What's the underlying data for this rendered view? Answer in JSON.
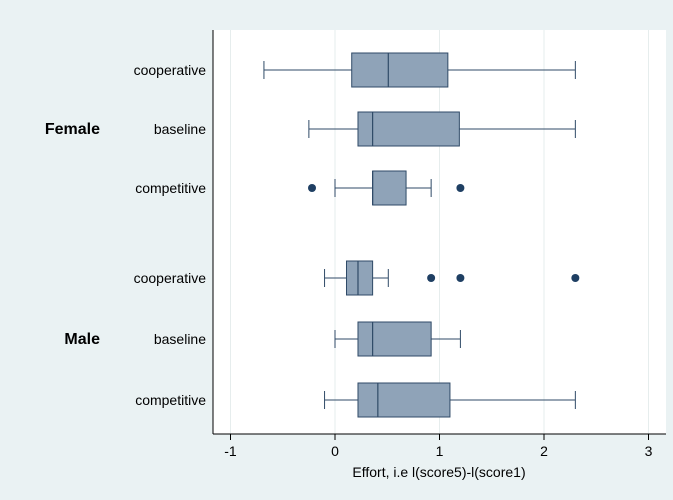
{
  "chart_data": {
    "type": "box",
    "title": "",
    "xlabel": "Effort, i.e l(score5)-l(score1)",
    "ylabel": "",
    "xlim": [
      -1.05,
      3.15
    ],
    "xticks": [
      -1,
      0,
      1,
      2,
      3
    ],
    "x_tick_labels": [
      "-1",
      "0",
      "1",
      "2",
      "3"
    ],
    "grid": true,
    "legend": "none",
    "colors": {
      "box_fill": "#8fa3b8",
      "box_stroke": "#2f4a67",
      "outlier": "#1f3f63",
      "plot_background": "#ffffff",
      "outer_background": "#eaf2f3",
      "grid": "#e6eded"
    },
    "groups": [
      {
        "name": "Female",
        "categories": [
          {
            "name": "cooperative",
            "whisker_low": -0.68,
            "q1": 0.16,
            "median": 0.51,
            "q3": 1.08,
            "whisker_high": 2.3,
            "outliers": []
          },
          {
            "name": "baseline",
            "whisker_low": -0.25,
            "q1": 0.22,
            "median": 0.36,
            "q3": 1.19,
            "whisker_high": 2.3,
            "outliers": []
          },
          {
            "name": "competitive",
            "whisker_low": 0.0,
            "q1": 0.36,
            "median": 0.36,
            "q3": 0.68,
            "whisker_high": 0.92,
            "outliers": [
              -0.22,
              1.2
            ]
          }
        ]
      },
      {
        "name": "Male",
        "categories": [
          {
            "name": "cooperative",
            "whisker_low": -0.1,
            "q1": 0.11,
            "median": 0.22,
            "q3": 0.36,
            "whisker_high": 0.51,
            "outliers": [
              0.92,
              1.2,
              2.3
            ]
          },
          {
            "name": "baseline",
            "whisker_low": 0.0,
            "q1": 0.22,
            "median": 0.36,
            "q3": 0.92,
            "whisker_high": 1.2,
            "outliers": []
          },
          {
            "name": "competitive",
            "whisker_low": -0.1,
            "q1": 0.22,
            "median": 0.41,
            "q3": 1.1,
            "whisker_high": 2.3,
            "outliers": []
          }
        ]
      }
    ]
  }
}
